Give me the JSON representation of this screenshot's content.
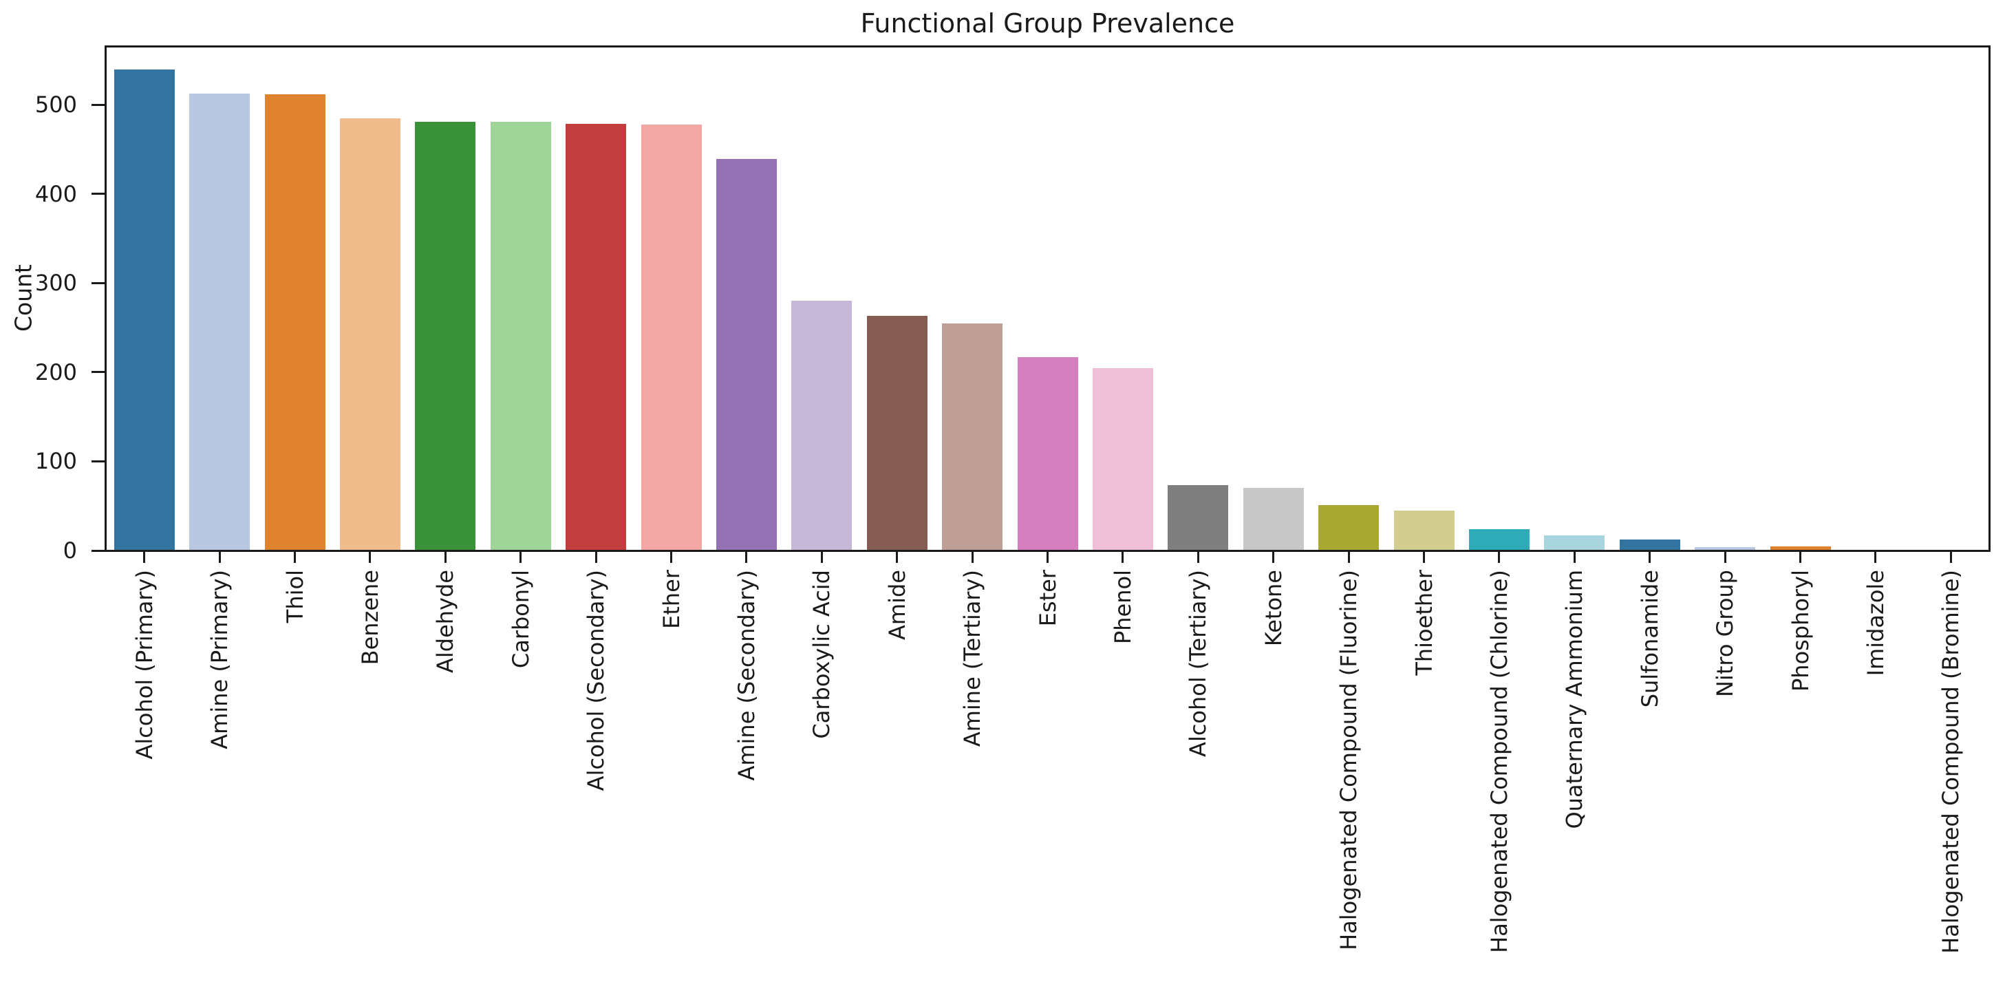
{
  "figure": {
    "background_color": "#ffffff",
    "text_color": "#1a1a1a"
  },
  "chart_data": {
    "type": "bar",
    "title": "Functional Group Prevalence",
    "xlabel": "",
    "ylabel": "Count",
    "categories": [
      "Alcohol (Primary)",
      "Amine (Primary)",
      "Thiol",
      "Benzene",
      "Aldehyde",
      "Carbonyl",
      "Alcohol (Secondary)",
      "Ether",
      "Amine (Secondary)",
      "Carboxylic Acid",
      "Amide",
      "Amine (Tertiary)",
      "Ester",
      "Phenol",
      "Alcohol (Tertiary)",
      "Ketone",
      "Halogenated Compound (Fluorine)",
      "Thioether",
      "Halogenated Compound (Chlorine)",
      "Quaternary Ammonium",
      "Sulfonamide",
      "Nitro Group",
      "Phosphoryl",
      "Imidazole",
      "Halogenated Compound (Bromine)"
    ],
    "values": [
      540,
      513,
      512,
      485,
      481,
      481,
      479,
      478,
      439,
      280,
      263,
      255,
      217,
      205,
      73,
      70,
      51,
      45,
      24,
      17,
      12,
      4,
      5,
      1,
      1
    ],
    "bar_colors": [
      "#33739f",
      "#b7c8e0",
      "#e0832e",
      "#f0bc8b",
      "#3a933a",
      "#9ed498",
      "#c23d3d",
      "#f2a7a4",
      "#9372b3",
      "#c5b8d6",
      "#855c52",
      "#bf9e96",
      "#d67fc0",
      "#efbed7",
      "#7f7f7f",
      "#c7c7c7",
      "#a8a833",
      "#d2cd90",
      "#2fabb8",
      "#a8d5de",
      "#33739f",
      "#b7c8e0",
      "#e0832e",
      "#f0bc8b",
      "#3a933a"
    ],
    "yticks": [
      0,
      100,
      200,
      300,
      400,
      500
    ],
    "ylim": [
      0,
      566
    ],
    "grid": false,
    "legend": "none",
    "x_tick_rotation_degrees": 90
  }
}
